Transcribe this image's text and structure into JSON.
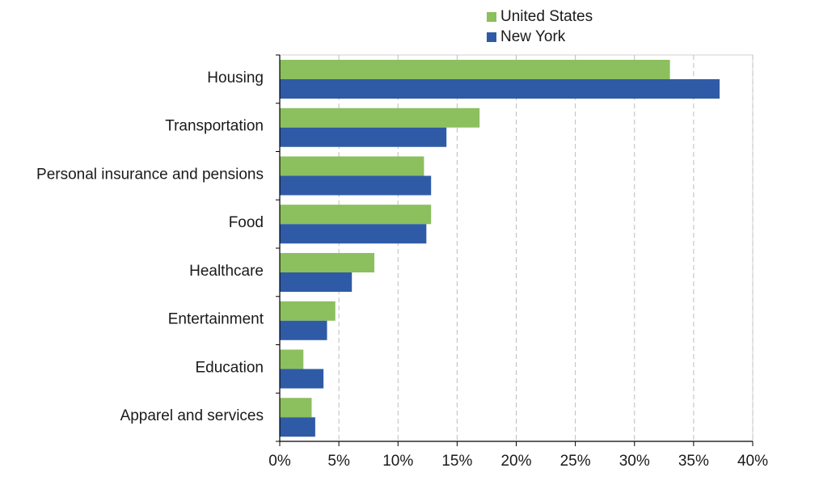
{
  "chart_data": {
    "type": "bar",
    "orientation": "horizontal",
    "title": "",
    "xlabel": "",
    "ylabel": "",
    "categories": [
      "Housing",
      "Transportation",
      "Personal insurance and pensions",
      "Food",
      "Healthcare",
      "Entertainment",
      "Education",
      "Apparel and services"
    ],
    "series": [
      {
        "name": "United States",
        "color": "#8cbf5e",
        "values": [
          33.0,
          16.9,
          12.2,
          12.8,
          8.0,
          4.7,
          2.0,
          2.7
        ]
      },
      {
        "name": "New York",
        "color": "#2f5ba6",
        "values": [
          37.2,
          14.1,
          12.8,
          12.4,
          6.1,
          4.0,
          3.7,
          3.0
        ]
      }
    ],
    "xlim": [
      0,
      40
    ],
    "xticks": [
      0,
      5,
      10,
      15,
      20,
      25,
      30,
      35,
      40
    ],
    "xtick_labels": [
      "0%",
      "5%",
      "10%",
      "15%",
      "20%",
      "25%",
      "30%",
      "35%",
      "40%"
    ],
    "grid": "vertical dashed",
    "legend": "top-center"
  }
}
